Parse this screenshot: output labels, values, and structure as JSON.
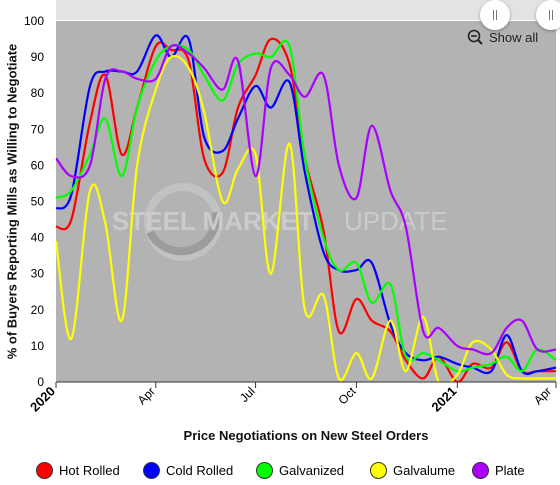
{
  "controls": {
    "show_all_label": "Show all"
  },
  "watermark": {
    "text_bold": "STEEL MARKET",
    "text_light": "UPDATE"
  },
  "colors": {
    "plot_bg": "#b3b3b3",
    "hot_rolled": "#ff0000",
    "cold_rolled": "#0000ff",
    "galvanized": "#00ff00",
    "galvalume": "#ffff00",
    "plate": "#aa00ff"
  },
  "chart_data": {
    "type": "line",
    "title": "",
    "xlabel": "Price Negotiations on New Steel Orders",
    "ylabel": "% of Buyers Reporting Mills as Willing to Negotiate",
    "ylim": [
      0,
      100
    ],
    "yticks": [
      0,
      10,
      20,
      30,
      40,
      50,
      60,
      70,
      80,
      90,
      100
    ],
    "xlim": [
      "2020-01-01",
      "2021-04-01"
    ],
    "xticks": [
      {
        "date": "2020-01-01",
        "label": "2020",
        "year": true
      },
      {
        "date": "2020-04-01",
        "label": "Apr",
        "year": false
      },
      {
        "date": "2020-07-01",
        "label": "Jul",
        "year": false
      },
      {
        "date": "2020-10-01",
        "label": "Oct",
        "year": false
      },
      {
        "date": "2021-01-01",
        "label": "2021",
        "year": true
      },
      {
        "date": "2021-04-01",
        "label": "Apr",
        "year": false
      }
    ],
    "grid": false,
    "legend_position": "bottom",
    "x": [
      "2020-01-01",
      "2020-01-15",
      "2020-02-01",
      "2020-02-15",
      "2020-03-01",
      "2020-03-15",
      "2020-04-01",
      "2020-04-15",
      "2020-05-01",
      "2020-05-15",
      "2020-06-01",
      "2020-06-15",
      "2020-07-01",
      "2020-07-15",
      "2020-08-01",
      "2020-08-15",
      "2020-09-01",
      "2020-09-15",
      "2020-10-01",
      "2020-10-15",
      "2020-11-01",
      "2020-11-15",
      "2020-12-01",
      "2020-12-15",
      "2021-01-01",
      "2021-01-15",
      "2021-02-01",
      "2021-02-15",
      "2021-03-01",
      "2021-03-15",
      "2021-04-01"
    ],
    "series": [
      {
        "name": "Hot Rolled",
        "color": "#ff0000",
        "values": [
          43,
          45,
          72,
          85,
          63,
          76,
          93,
          92,
          89,
          62,
          58,
          76,
          85,
          95,
          88,
          62,
          42,
          14,
          23,
          17,
          14,
          6,
          1,
          7,
          0,
          5,
          4,
          11,
          3,
          3,
          3
        ]
      },
      {
        "name": "Cold Rolled",
        "color": "#0000ff",
        "values": [
          48,
          52,
          82,
          86,
          86,
          86,
          96,
          90,
          95,
          68,
          64,
          73,
          82,
          76,
          83,
          58,
          36,
          31,
          31,
          33,
          16,
          8,
          6,
          7,
          5,
          4,
          3,
          13,
          3,
          3,
          4
        ]
      },
      {
        "name": "Galvanized",
        "color": "#00ff00",
        "values": [
          51,
          53,
          63,
          73,
          57,
          76,
          89,
          93,
          92,
          85,
          78,
          88,
          91,
          90,
          93,
          62,
          40,
          31,
          33,
          22,
          27,
          7,
          8,
          6,
          3,
          4,
          5,
          7,
          3,
          9,
          6
        ]
      },
      {
        "name": "Galvalume",
        "color": "#ffff00",
        "values": [
          39,
          12,
          53,
          44,
          17,
          60,
          81,
          90,
          87,
          75,
          50,
          59,
          63,
          30,
          66,
          20,
          24,
          1,
          8,
          1,
          17,
          3,
          18,
          0,
          2,
          11,
          9,
          2,
          1,
          1,
          1
        ]
      },
      {
        "name": "Plate",
        "color": "#aa00ff",
        "values": [
          62,
          57,
          60,
          84,
          86,
          84,
          84,
          93,
          91,
          87,
          81,
          89,
          57,
          87,
          85,
          79,
          85,
          60,
          51,
          71,
          53,
          43,
          14,
          15,
          10,
          9,
          8,
          15,
          17,
          9,
          9
        ]
      }
    ]
  }
}
